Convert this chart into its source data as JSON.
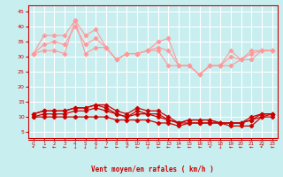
{
  "x": [
    0,
    1,
    2,
    3,
    4,
    5,
    6,
    7,
    8,
    9,
    10,
    11,
    12,
    13,
    14,
    15,
    16,
    17,
    18,
    19,
    20,
    21,
    22,
    23
  ],
  "gust1": [
    31,
    37,
    37,
    37,
    42,
    37,
    39,
    33,
    29,
    31,
    31,
    32,
    35,
    36,
    27,
    27,
    24,
    27,
    27,
    32,
    29,
    32,
    32,
    32
  ],
  "gust2": [
    31,
    32,
    32,
    31,
    42,
    31,
    33,
    33,
    29,
    31,
    31,
    32,
    32,
    27,
    27,
    27,
    24,
    27,
    27,
    27,
    29,
    29,
    32,
    32
  ],
  "gust3": [
    31,
    34,
    35,
    34,
    40,
    34,
    36,
    33,
    29,
    31,
    31,
    32,
    33,
    32,
    27,
    27,
    24,
    27,
    27,
    30,
    29,
    31,
    32,
    32
  ],
  "mean1": [
    11,
    12,
    12,
    12,
    13,
    13,
    14,
    14,
    12,
    11,
    13,
    12,
    12,
    10,
    8,
    9,
    9,
    9,
    8,
    8,
    8,
    10,
    11,
    11
  ],
  "mean2": [
    10,
    10,
    10,
    10,
    10,
    10,
    10,
    10,
    9,
    9,
    9,
    9,
    8,
    8,
    7,
    8,
    8,
    8,
    8,
    7,
    7,
    7,
    10,
    10
  ],
  "mean3": [
    10,
    11,
    11,
    11,
    12,
    12,
    13,
    12,
    11,
    10,
    11,
    11,
    10,
    9,
    8,
    8,
    8,
    8,
    8,
    8,
    8,
    9,
    10,
    11
  ],
  "mean4": [
    11,
    12,
    12,
    12,
    13,
    13,
    14,
    13,
    11,
    10,
    12,
    11,
    11,
    9,
    8,
    9,
    9,
    9,
    8,
    8,
    8,
    9,
    11,
    11
  ],
  "color_light": "#ff9999",
  "color_dark": "#cc0000",
  "color_darkest": "#880000",
  "bg_color": "#c8eef0",
  "grid_color": "#ffffff",
  "axis_color": "#cc0000",
  "xlabel": "Vent moyen/en rafales ( km/h )",
  "ylim": [
    3,
    47
  ],
  "xlim": [
    -0.5,
    23.5
  ],
  "yticks": [
    5,
    10,
    15,
    20,
    25,
    30,
    35,
    40,
    45
  ],
  "xticks": [
    0,
    1,
    2,
    3,
    4,
    5,
    6,
    7,
    8,
    9,
    10,
    11,
    12,
    13,
    14,
    15,
    16,
    17,
    18,
    19,
    20,
    21,
    22,
    23
  ],
  "arrows": [
    "↙",
    "←",
    "←",
    "←",
    "↓",
    "↓",
    "↓",
    "←",
    "←",
    "↙",
    "←",
    "↓",
    "←",
    "←",
    "←",
    "←",
    "←",
    "↙",
    "↓",
    "←",
    "←",
    "←",
    "↙",
    "←"
  ]
}
